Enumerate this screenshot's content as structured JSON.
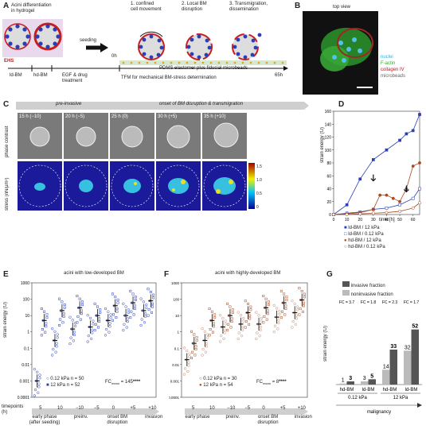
{
  "panels": {
    "A": "A",
    "B": "B",
    "C": "C",
    "D": "D",
    "E": "E",
    "F": "F",
    "G": "G"
  },
  "panelA": {
    "title": "Acini differentiation\nin hydrogel",
    "seeding": "seeding",
    "steps": [
      "1. confined\ncell movement",
      "2. Local BM\ndisruption",
      "3. Transmigration,\ndissemination"
    ],
    "ehs": "EHS",
    "ldbm": "ld-BM",
    "hdbm": "hd-BM",
    "egf": "EGF &  drug\ntreatment",
    "t0": "0h",
    "t65": "65h",
    "pdms": "PDMS elastomer plus fiducial microbeads",
    "tfm": "TFM for mechanical BM-stress determination"
  },
  "panelB": {
    "title": "top view",
    "legend": [
      "nuclei",
      "F-actin",
      "collagen IV",
      "microbeads"
    ],
    "colors": [
      "#2bb0e0",
      "#2fae2f",
      "#b02020",
      "#888888"
    ]
  },
  "panelC": {
    "pre": "pre-invasive",
    "onset": "onset of BM disruption & transmigration",
    "times": [
      "15 h (−10)",
      "20 h (−5)",
      "25 h (0)",
      "30 h (+5)",
      "35 h (+10)"
    ],
    "row1": "phase contrast",
    "row2": "stress (nN/µm²)",
    "cbar": [
      "1.5",
      "1.0",
      "0.5",
      "0"
    ]
  },
  "panelD": {
    "ylabel": "strain energy (fJ)",
    "xlabel": "time [h]",
    "yticks": [
      "0",
      "20",
      "40",
      "60",
      "80",
      "100",
      "120",
      "140",
      "160"
    ],
    "xticks": [
      "0",
      "10",
      "20",
      "30",
      "40",
      "50",
      "60"
    ],
    "legend": [
      "ld-BM / 12 kPa",
      "ld-BM / 0.12 kPa",
      "hd-BM / 12 kPa",
      "hd-BM / 0.12 kPa"
    ]
  },
  "panelE": {
    "title": "acini with low-developed BM",
    "ylabel": "strain energy (fJ)",
    "yticks": [
      "1000",
      "100",
      "10",
      "1",
      "0.1",
      "0.01",
      "0.001",
      "0.0001"
    ],
    "legend": [
      "0.12 kPa n = 50",
      "12 kPa n = 52"
    ],
    "fc": "FC",
    "fc_sub": "mean",
    "fc_val": "= 145",
    "stars": "****",
    "tp_label": "timepoints\n(h)",
    "tps": [
      "5",
      "10",
      "−10",
      "−5",
      "0",
      "+5",
      "+10"
    ],
    "groups": [
      "early phase\n(after seeding)",
      "preinv.",
      "onset BM\ndisruption",
      "invasion"
    ]
  },
  "panelF": {
    "title": "acini with highly-developed BM",
    "yticks": [
      "1000",
      "100",
      "10",
      "1",
      "0.1",
      "0.01",
      "0.001",
      "0.0001"
    ],
    "legend": [
      "0.12 kPa n = 30",
      "12 kPa n = 54"
    ],
    "fc": "FC",
    "fc_sub": "mean",
    "fc_val": "= 8",
    "stars": "****",
    "tps": [
      "5",
      "10",
      "−10",
      "−5",
      "0",
      "+5",
      "+10"
    ],
    "groups": [
      "early phase",
      "preinv.",
      "onset BM\ndisruption",
      "invasion"
    ]
  },
  "panelG": {
    "legend": [
      "invasive fraction",
      "noninvasive fraction"
    ],
    "ylabel": "strain energy (fJ)",
    "fc": [
      "FC = 3.7",
      "FC = 1.8",
      "FC = 2.3",
      "FC = 1.7"
    ],
    "xcats": [
      "hd-BM",
      "ld-BM",
      "hd-BM",
      "ld-BM"
    ],
    "subs": [
      "0.12 kPa",
      "12 kPa"
    ],
    "xlabel": "malignancy"
  },
  "chart_data": [
    {
      "type": "line",
      "panel": "D",
      "xlabel": "time [h]",
      "ylabel": "strain energy (fJ)",
      "ylim": [
        0,
        160
      ],
      "xlim": [
        0,
        65
      ],
      "series": [
        {
          "name": "ld-BM / 12 kPa",
          "x": [
            0,
            10,
            20,
            30,
            40,
            50,
            55,
            60,
            65
          ],
          "values": [
            0,
            15,
            55,
            85,
            100,
            115,
            125,
            130,
            155
          ]
        },
        {
          "name": "ld-BM / 0.12 kPa",
          "x": [
            0,
            10,
            20,
            30,
            40,
            50,
            60,
            65
          ],
          "values": [
            0,
            2,
            4,
            8,
            10,
            15,
            25,
            40
          ]
        },
        {
          "name": "hd-BM / 12 kPa",
          "x": [
            0,
            10,
            20,
            30,
            35,
            40,
            45,
            50,
            55,
            60,
            65
          ],
          "values": [
            0,
            1,
            3,
            8,
            30,
            30,
            25,
            20,
            40,
            75,
            80
          ]
        },
        {
          "name": "hd-BM / 0.12 kPa",
          "x": [
            0,
            10,
            20,
            30,
            40,
            50,
            60,
            65
          ],
          "values": [
            0,
            0,
            1,
            2,
            3,
            5,
            10,
            18
          ]
        }
      ]
    },
    {
      "type": "scatter",
      "panel": "E",
      "ylabel": "strain energy (fJ)",
      "yscale": "log",
      "ylim": [
        0.0001,
        1000
      ],
      "categories": [
        "5",
        "10",
        "−10",
        "−5",
        "0",
        "+5",
        "+10"
      ],
      "series": [
        {
          "name": "0.12 kPa",
          "values": [
            0.001,
            0.3,
            1.5,
            2,
            5,
            10,
            20
          ]
        },
        {
          "name": "12 kPa",
          "values": [
            5,
            20,
            30,
            10,
            40,
            60,
            80
          ]
        }
      ]
    },
    {
      "type": "scatter",
      "panel": "F",
      "yscale": "log",
      "ylim": [
        0.0001,
        1000
      ],
      "categories": [
        "5",
        "10",
        "−10",
        "−5",
        "0",
        "+5",
        "+10"
      ],
      "series": [
        {
          "name": "0.12 kPa",
          "values": [
            0.02,
            0.3,
            2,
            3,
            3,
            8,
            15
          ]
        },
        {
          "name": "12 kPa",
          "values": [
            0.2,
            5,
            10,
            15,
            30,
            60,
            90
          ]
        }
      ]
    },
    {
      "type": "bar",
      "panel": "G",
      "categories": [
        "hd-BM 0.12 kPa",
        "ld-BM 0.12 kPa",
        "hd-BM 12 kPa",
        "ld-BM 12 kPa"
      ],
      "series": [
        {
          "name": "noninvasive fraction",
          "values": [
            1,
            3,
            14,
            32
          ]
        },
        {
          "name": "invasive fraction",
          "values": [
            3,
            5,
            33,
            52
          ]
        }
      ]
    }
  ]
}
